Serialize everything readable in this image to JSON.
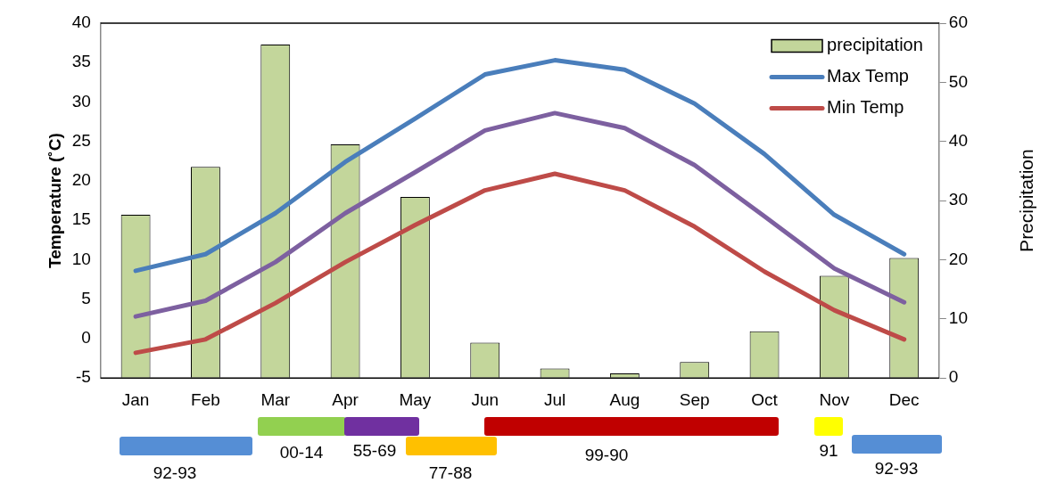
{
  "chart_data": {
    "type": "bar",
    "ylabel": "Temperature (˚C)",
    "y2label": "Precipitation",
    "categories": [
      "Jan",
      "Feb",
      "Mar",
      "Apr",
      "May",
      "Jun",
      "Jul",
      "Aug",
      "Sep",
      "Oct",
      "Nov",
      "Dec"
    ],
    "series": [
      {
        "name": "precipitation",
        "axis": "y2",
        "color": "#c3d69b",
        "values": [
          27.6,
          35.7,
          56.4,
          39.5,
          30.6,
          6.0,
          1.6,
          0.8,
          2.7,
          7.9,
          17.3,
          20.3
        ]
      },
      {
        "name": "Max Temp",
        "type": "line",
        "color": "#4a7ebb",
        "values": [
          8.6,
          10.7,
          15.9,
          22.4,
          27.9,
          33.5,
          35.3,
          34.1,
          29.8,
          23.4,
          15.7,
          10.7
        ]
      },
      {
        "type": "line",
        "color": "#7d60a0",
        "values": [
          2.8,
          4.8,
          9.7,
          15.9,
          21.1,
          26.4,
          28.6,
          26.7,
          22.0,
          15.5,
          8.9,
          4.6
        ]
      },
      {
        "name": "Min Temp",
        "type": "line",
        "color": "#be4b48",
        "values": [
          -1.8,
          -0.1,
          4.5,
          9.7,
          14.4,
          18.8,
          20.9,
          18.8,
          14.2,
          8.5,
          3.6,
          -0.1
        ]
      }
    ],
    "ylim": [
      -5,
      40
    ],
    "yticks": [
      -5,
      0,
      5,
      10,
      15,
      20,
      25,
      30,
      35,
      40
    ],
    "y2lim": [
      0,
      60
    ],
    "y2ticks": [
      0,
      10,
      20,
      30,
      40,
      50,
      60
    ],
    "annotations": [
      "92-93",
      "00-14",
      "55-69",
      "77-88",
      "99-90",
      "91",
      "92-93"
    ],
    "grid": false,
    "legend": "top right",
    "marker": "none",
    "line_style": "solid"
  }
}
